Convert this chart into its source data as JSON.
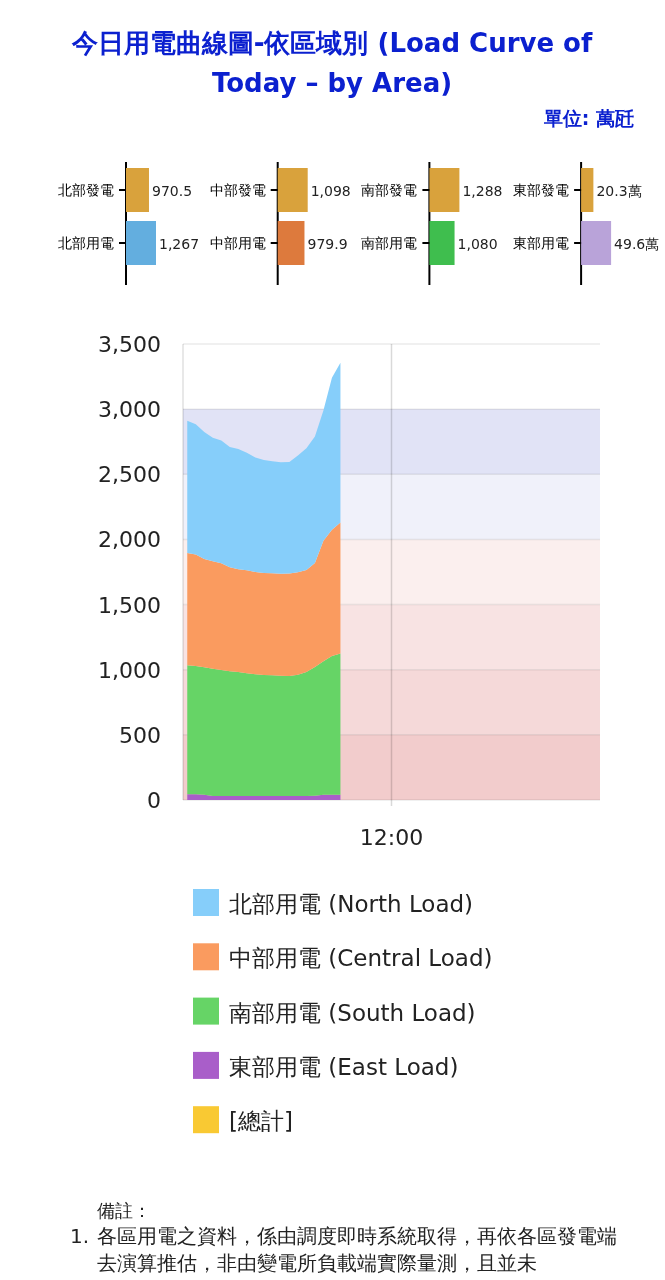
{
  "chart_data": [
    {
      "type": "other",
      "title": "今日用電曲線圖-依區域別 (Load Curve of Today – by Area)",
      "subtitle": "單位: 萬瓩"
    },
    {
      "type": "bar",
      "orientation": "horizontal",
      "tick_labels": "y",
      "categories": [
        "北部發電",
        "北部用電"
      ],
      "values": [
        970.5,
        1267
      ],
      "colors": [
        "#d9a23c",
        "#63aedf"
      ],
      "value_labels": [
        "970.5",
        "1,267"
      ]
    },
    {
      "type": "bar",
      "orientation": "horizontal",
      "tick_labels": "y",
      "categories": [
        "中部發電",
        "中部用電"
      ],
      "values": [
        1098,
        979.9
      ],
      "colors": [
        "#d9a23c",
        "#dd7a3d"
      ],
      "value_labels": [
        "1,098",
        "979.9"
      ]
    },
    {
      "type": "bar",
      "orientation": "horizontal",
      "tick_labels": "y",
      "categories": [
        "南部發電",
        "南部用電"
      ],
      "values": [
        1288,
        1080
      ],
      "colors": [
        "#d9a23c",
        "#3fbe4e"
      ],
      "value_labels": [
        "1,288",
        "1,080"
      ]
    },
    {
      "type": "bar",
      "orientation": "horizontal",
      "tick_labels": "y",
      "categories": [
        "東部發電",
        "東部用電"
      ],
      "values": [
        20.3,
        49.6
      ],
      "colors": [
        "#d9a23c",
        "#b9a3d9"
      ],
      "value_labels": [
        "20.3萬",
        "49.6萬"
      ]
    },
    {
      "type": "area",
      "stacked": true,
      "grid": "y",
      "legend": "bottom",
      "categories": [
        null,
        null,
        null,
        null,
        null,
        null,
        null,
        null,
        null,
        null,
        null,
        null,
        null,
        null,
        null,
        null,
        null,
        null,
        null,
        null,
        null,
        null,
        null,
        null,
        null,
        null,
        null,
        null,
        null,
        null,
        null,
        null,
        null,
        null,
        null,
        null,
        null,
        null,
        null,
        null,
        null,
        null,
        null,
        null,
        null,
        null,
        null,
        null,
        null
      ],
      "ylim": [
        0,
        3500
      ],
      "yticks": [
        {
          "value": 0,
          "label": "0"
        },
        {
          "value": 500,
          "label": "500"
        },
        {
          "value": 1000,
          "label": "1,000"
        },
        {
          "value": 1500,
          "label": "1,500"
        },
        {
          "value": 2000,
          "label": "2,000"
        },
        {
          "value": 2500,
          "label": "2,500"
        },
        {
          "value": 3000,
          "label": "3,000"
        },
        {
          "value": 3500,
          "label": "3,500"
        }
      ],
      "series": [
        {
          "name": "[總計]",
          "color": "#f9c933",
          "values": [
            null,
            null,
            null,
            null,
            null,
            null,
            null,
            null,
            null,
            null,
            null,
            null,
            null,
            null,
            null,
            null,
            null,
            null,
            null,
            null,
            null,
            null,
            null,
            null,
            null,
            null,
            null,
            null,
            null,
            null,
            null,
            null,
            null,
            null,
            null,
            null,
            null,
            null,
            null,
            null,
            null,
            null,
            null,
            null,
            null,
            null,
            null,
            null,
            null
          ]
        },
        {
          "name": "東部用電 (East Load)",
          "color": "#a95ec9",
          "values": [
            45,
            45,
            40,
            30,
            30,
            30,
            30,
            30,
            30,
            30,
            30,
            30,
            30,
            30,
            30,
            33,
            40,
            40,
            40,
            null,
            null,
            null,
            null,
            null,
            null,
            null,
            null,
            null,
            null,
            null,
            null,
            null,
            null,
            null,
            null,
            null,
            null,
            null,
            null,
            null,
            null,
            null,
            null,
            null,
            null,
            null,
            null,
            null,
            null
          ]
        },
        {
          "name": "南部用電 (South Load)",
          "color": "#66d466",
          "values": [
            990,
            983,
            978,
            977,
            967,
            959,
            952,
            943,
            935,
            930,
            928,
            923,
            922,
            931,
            952,
            987,
            1025,
            1065,
            1085,
            null,
            null,
            null,
            null,
            null,
            null,
            null,
            null,
            null,
            null,
            null,
            null,
            null,
            null,
            null,
            null,
            null,
            null,
            null,
            null,
            null,
            null,
            null,
            null,
            null,
            null,
            null,
            null,
            null,
            null
          ]
        },
        {
          "name": "中部用電 (Central Load)",
          "color": "#fa9b5f",
          "values": [
            860,
            857,
            832,
            825,
            821,
            798,
            790,
            790,
            785,
            782,
            782,
            783,
            786,
            787,
            783,
            800,
            925,
            970,
            1005,
            null,
            null,
            null,
            null,
            null,
            null,
            null,
            null,
            null,
            null,
            null,
            null,
            null,
            null,
            null,
            null,
            null,
            null,
            null,
            null,
            null,
            null,
            null,
            null,
            null,
            null,
            null,
            null,
            null,
            null
          ]
        },
        {
          "name": "北部用電 (North Load)",
          "color": "#86cefa",
          "values": [
            1015,
            1000,
            975,
            948,
            942,
            923,
            923,
            902,
            878,
            868,
            861,
            856,
            857,
            897,
            935,
            970,
            1000,
            1165,
            1226,
            null,
            null,
            null,
            null,
            null,
            null,
            null,
            null,
            null,
            null,
            null,
            null,
            null,
            null,
            null,
            null,
            null,
            null,
            null,
            null,
            null,
            null,
            null,
            null,
            null,
            null,
            null,
            null,
            null,
            null
          ]
        }
      ],
      "bands": [
        {
          "axis": "y",
          "from": 0,
          "to": 500,
          "color": "#f2cccc"
        },
        {
          "axis": "y",
          "from": 500,
          "to": 1000,
          "color": "#f5d9d9"
        },
        {
          "axis": "y",
          "from": 1000,
          "to": 1500,
          "color": "#f8e3e3"
        },
        {
          "axis": "y",
          "from": 1500,
          "to": 2000,
          "color": "#fbefee"
        },
        {
          "axis": "y",
          "from": 2000,
          "to": 2500,
          "color": "#f0f1fa"
        },
        {
          "axis": "y",
          "from": 2500,
          "to": 3000,
          "color": "#e1e3f6"
        }
      ],
      "annotations": [
        "12:00",
        "備註：",
        "1. 各區用電之資料，係由調度即時系統取得，再依各區發電端去演算推估，非由變電所負載端實際量測，且並未"
      ]
    }
  ]
}
